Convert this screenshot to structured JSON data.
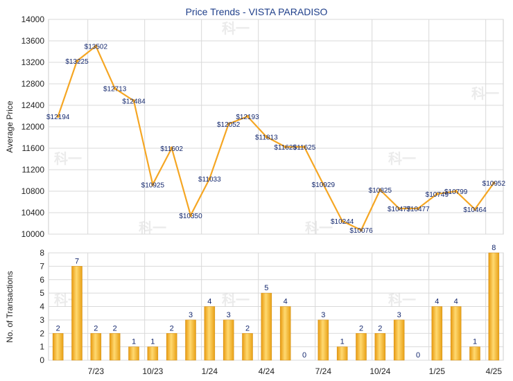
{
  "chart_data": [
    {
      "type": "line",
      "title": "Price Trends - VISTA PARADISO",
      "ylabel": "Average Price",
      "ylim": [
        10000,
        14000
      ],
      "yticks": [
        10000,
        10400,
        10800,
        11200,
        11600,
        12000,
        12400,
        12800,
        13200,
        13600,
        14000
      ],
      "grid": true,
      "color": "#f5a623",
      "series": [
        {
          "values": [
            12194,
            13225,
            13502,
            12713,
            12484,
            10925,
            11602,
            10350,
            11033,
            12052,
            12193,
            11813,
            11625,
            11625,
            10929,
            10244,
            10076,
            10825,
            10477,
            10477,
            10749,
            10799,
            10464,
            10952
          ],
          "labels": [
            "$12194",
            "$13225",
            "$13502",
            "$12713",
            "$12484",
            "$10925",
            "$11602",
            "$10350",
            "$11033",
            "$12052",
            "$12193",
            "$11813",
            "$11625",
            "$11625",
            "$10929",
            "$10244",
            "$10076",
            "$10825",
            "$10477",
            "$10477",
            "$10749",
            "$10799",
            "$10464",
            "$10952"
          ]
        }
      ]
    },
    {
      "type": "bar",
      "ylabel": "No. of Transactions",
      "ylim": [
        0,
        8
      ],
      "yticks": [
        0,
        1,
        2,
        3,
        4,
        5,
        6,
        7,
        8
      ],
      "grid": true,
      "color": "#f0b020",
      "categories": [
        "",
        "",
        "7/23",
        "",
        "",
        "10/23",
        "",
        "",
        "1/24",
        "",
        "",
        "4/24",
        "",
        "",
        "7/24",
        "",
        "",
        "10/24",
        "",
        "",
        "1/25",
        "",
        "",
        "4/25"
      ],
      "values": [
        2,
        7,
        2,
        2,
        1,
        1,
        2,
        3,
        4,
        3,
        2,
        5,
        4,
        0,
        3,
        1,
        2,
        2,
        3,
        0,
        4,
        4,
        1,
        8
      ]
    }
  ],
  "watermark": "科一"
}
